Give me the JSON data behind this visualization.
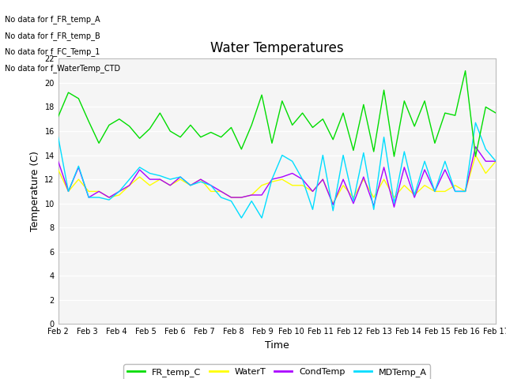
{
  "title": "Water Temperatures",
  "xlabel": "Time",
  "ylabel": "Temperature (C)",
  "ylim": [
    0,
    22
  ],
  "yticks": [
    0,
    2,
    4,
    6,
    8,
    10,
    12,
    14,
    16,
    18,
    20,
    22
  ],
  "no_data_lines": [
    "No data for f_FR_temp_A",
    "No data for f_FR_temp_B",
    "No data for f_FC_Temp_1",
    "No data for f_WaterTemp_CTD"
  ],
  "legend": [
    {
      "label": "FR_temp_C",
      "color": "#00dd00"
    },
    {
      "label": "WaterT",
      "color": "#ffff00"
    },
    {
      "label": "CondTemp",
      "color": "#aa00ff"
    },
    {
      "label": "MDTemp_A",
      "color": "#00ddff"
    }
  ],
  "x_labels": [
    "Feb 2",
    "Feb 3",
    "Feb 4",
    "Feb 5",
    "Feb 6",
    "Feb 7",
    "Feb 8",
    "Feb 9",
    "Feb 10",
    "Feb 11",
    "Feb 12",
    "Feb 13",
    "Feb 14",
    "Feb 15",
    "Feb 16",
    "Feb 17"
  ],
  "FR_temp_C": [
    17.2,
    19.2,
    18.7,
    16.8,
    15.0,
    16.5,
    17.0,
    16.4,
    15.4,
    16.2,
    17.5,
    16.0,
    15.5,
    16.5,
    15.5,
    15.9,
    15.5,
    16.3,
    14.5,
    16.5,
    19.0,
    15.0,
    18.5,
    16.5,
    17.5,
    16.3,
    17.0,
    15.3,
    17.5,
    14.4,
    18.2,
    14.3,
    19.4,
    13.9,
    18.5,
    16.4,
    18.5,
    15.0,
    17.5,
    17.3,
    21.0,
    13.9,
    18.0,
    17.5
  ],
  "WaterT": [
    12.8,
    11.0,
    12.0,
    11.0,
    11.0,
    10.5,
    10.7,
    11.5,
    12.2,
    11.5,
    12.0,
    11.5,
    12.0,
    11.5,
    12.0,
    11.0,
    11.0,
    10.5,
    10.5,
    10.7,
    11.5,
    11.8,
    12.0,
    11.5,
    11.5,
    11.0,
    12.0,
    10.0,
    11.5,
    10.5,
    12.0,
    10.5,
    12.0,
    10.5,
    11.5,
    10.7,
    11.5,
    11.0,
    11.0,
    11.5,
    11.0,
    14.0,
    12.5,
    13.5
  ],
  "CondTemp": [
    13.5,
    11.0,
    13.0,
    10.5,
    11.0,
    10.5,
    11.0,
    11.5,
    12.8,
    12.0,
    12.0,
    11.5,
    12.2,
    11.5,
    12.0,
    11.5,
    11.0,
    10.5,
    10.5,
    10.7,
    10.7,
    12.0,
    12.2,
    12.5,
    12.0,
    11.0,
    12.0,
    9.9,
    12.0,
    10.0,
    12.2,
    9.8,
    13.0,
    9.7,
    13.0,
    10.5,
    12.8,
    11.0,
    12.8,
    11.0,
    11.0,
    14.7,
    13.5,
    13.5
  ],
  "MDTemp_A": [
    15.5,
    11.0,
    13.1,
    10.5,
    10.5,
    10.3,
    11.0,
    12.0,
    13.0,
    12.5,
    12.3,
    12.0,
    12.2,
    11.5,
    11.8,
    11.5,
    10.5,
    10.2,
    8.8,
    10.2,
    8.8,
    12.0,
    14.0,
    13.5,
    12.0,
    9.5,
    14.0,
    9.4,
    14.0,
    10.2,
    14.2,
    9.5,
    15.5,
    10.0,
    14.3,
    10.7,
    13.5,
    11.0,
    13.5,
    11.0,
    11.0,
    16.7,
    14.5,
    13.5
  ]
}
